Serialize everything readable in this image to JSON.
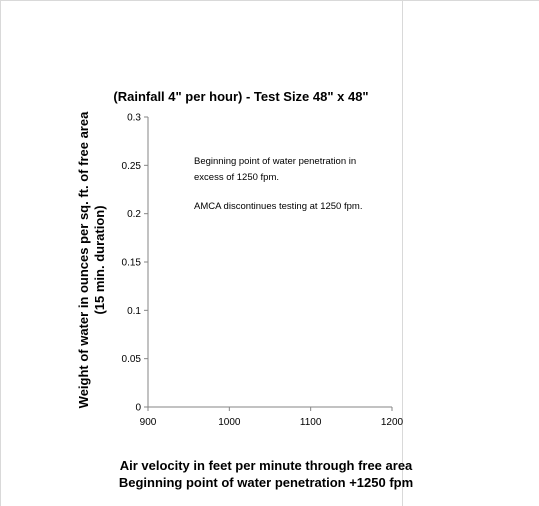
{
  "chart_data": {
    "type": "scatter",
    "title": "(Rainfall 4\" per hour) - Test Size 48\" x 48\"",
    "ylabel_lines": [
      "Weight of water in ounces per sq. ft. of free area",
      "(15 min. duration)"
    ],
    "xlabel_lines": [
      "Air velocity in feet per minute through free area",
      "Beginning point of water penetration +1250 fpm"
    ],
    "xlim": [
      900,
      1200
    ],
    "ylim": [
      0,
      0.3
    ],
    "x_ticks": [
      900,
      1000,
      1100,
      1200
    ],
    "x_tick_labels": [
      "900",
      "1000",
      "1100",
      "1200"
    ],
    "y_ticks": [
      0,
      0.05,
      0.1,
      0.15,
      0.2,
      0.25,
      0.3
    ],
    "y_tick_labels": [
      "0",
      "0.05",
      "0.1",
      "0.15",
      "0.2",
      "0.25",
      "0.3"
    ],
    "series": [],
    "grid": false,
    "annotations": [
      "Beginning point of water penetration in",
      "excess of 1250 fpm.",
      "AMCA discontinues testing at 1250 fpm."
    ]
  }
}
